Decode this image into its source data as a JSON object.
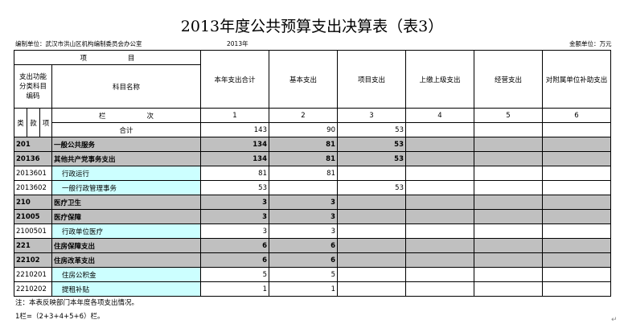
{
  "title": "2013年度公共预算支出决算表（表3）",
  "unit_label": "编制单位：武汉市洪山区机构编制委员会办公室",
  "year": "2013年",
  "amount_unit": "金额单位：万元",
  "header": {
    "item": "项　　　　　　目",
    "code_label": "支出功能分类科目编码",
    "name_label": "科目名称",
    "columns": [
      "本年支出合计",
      "基本支出",
      "项目支出",
      "上缴上级支出",
      "经营支出",
      "对附属单位补助支出"
    ],
    "sub_codes": [
      "类",
      "款",
      "项"
    ],
    "col_index_label": "栏　　　　　　次",
    "col_numbers": [
      "1",
      "2",
      "3",
      "4",
      "5",
      "6"
    ]
  },
  "total": {
    "label": "合计",
    "values": [
      "143",
      "90",
      "53",
      "",
      "",
      ""
    ]
  },
  "rows": [
    {
      "code": "201",
      "name": "一般公共服务",
      "values": [
        "134",
        "81",
        "53",
        "",
        "",
        ""
      ],
      "level": "group"
    },
    {
      "code": "20136",
      "name": "其他共产党事务支出",
      "values": [
        "134",
        "81",
        "53",
        "",
        "",
        ""
      ],
      "level": "group"
    },
    {
      "code": "2013601",
      "name": "行政运行",
      "values": [
        "81",
        "81",
        "",
        "",
        "",
        ""
      ],
      "level": "leaf"
    },
    {
      "code": "2013602",
      "name": "一般行政管理事务",
      "values": [
        "53",
        "",
        "53",
        "",
        "",
        ""
      ],
      "level": "leaf"
    },
    {
      "code": "210",
      "name": "医疗卫生",
      "values": [
        "3",
        "3",
        "",
        "",
        "",
        ""
      ],
      "level": "group"
    },
    {
      "code": "21005",
      "name": "医疗保障",
      "values": [
        "3",
        "3",
        "",
        "",
        "",
        ""
      ],
      "level": "group"
    },
    {
      "code": "2100501",
      "name": "行政单位医疗",
      "values": [
        "3",
        "3",
        "",
        "",
        "",
        ""
      ],
      "level": "leaf"
    },
    {
      "code": "221",
      "name": "住房保障支出",
      "values": [
        "6",
        "6",
        "",
        "",
        "",
        ""
      ],
      "level": "group"
    },
    {
      "code": "22102",
      "name": "住房改革支出",
      "values": [
        "6",
        "6",
        "",
        "",
        "",
        ""
      ],
      "level": "group"
    },
    {
      "code": "2210201",
      "name": "住房公积金",
      "values": [
        "5",
        "5",
        "",
        "",
        "",
        ""
      ],
      "level": "leaf"
    },
    {
      "code": "2210202",
      "name": "提租补贴",
      "values": [
        "1",
        "1",
        "",
        "",
        "",
        ""
      ],
      "level": "leaf"
    }
  ],
  "notes": [
    "注：本表反映部门本年度各项支出情况。",
    "1栏=（2+3+4+5+6）栏。"
  ],
  "colors": {
    "group_bg": "#c0c0c0",
    "leaf_name_bg": "#ccffff"
  }
}
